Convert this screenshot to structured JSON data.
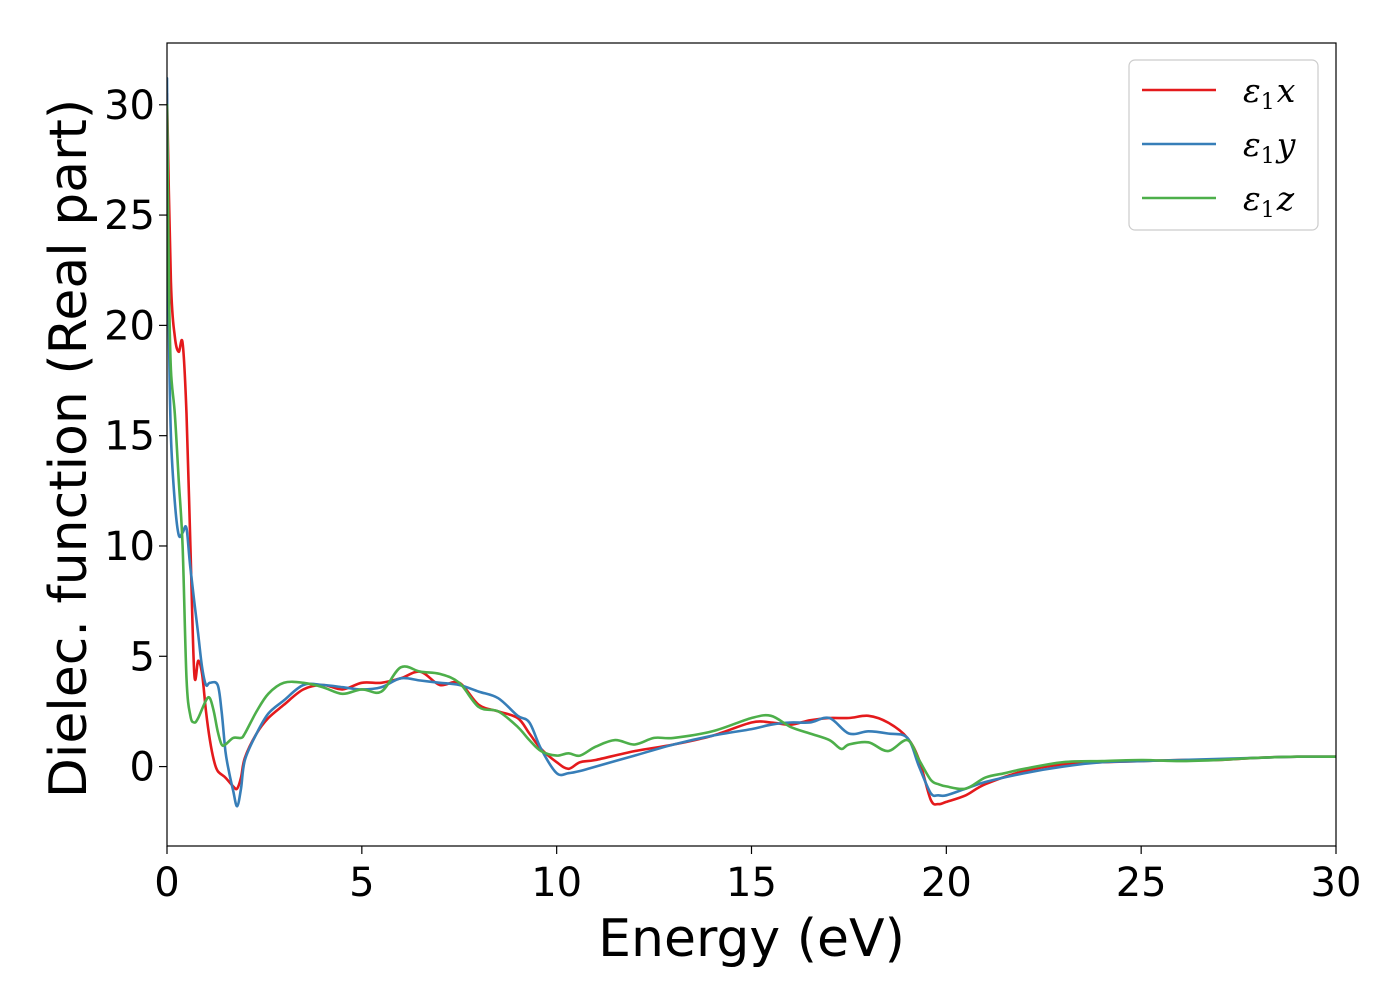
{
  "chart_data": {
    "type": "line",
    "title": "",
    "xlabel": "Energy (eV)",
    "ylabel": "Dielec. function (Real part)",
    "xlim": [
      0,
      30
    ],
    "ylim": [
      -3.6,
      32.8
    ],
    "xticks": [
      0,
      5,
      10,
      15,
      20,
      25,
      30
    ],
    "yticks": [
      0,
      5,
      10,
      15,
      20,
      25,
      30
    ],
    "grid": false,
    "legend_position": "top-right",
    "series": [
      {
        "name": "ε1x",
        "label_base": "ε",
        "label_sub": "1",
        "label_var": "x",
        "color": "#e41a1c",
        "points": [
          [
            0.0,
            30.5
          ],
          [
            0.1,
            22
          ],
          [
            0.2,
            19.5
          ],
          [
            0.3,
            18.8
          ],
          [
            0.4,
            19.2
          ],
          [
            0.5,
            16
          ],
          [
            0.6,
            10
          ],
          [
            0.7,
            4.2
          ],
          [
            0.8,
            4.8
          ],
          [
            0.9,
            4.2
          ],
          [
            1.0,
            2.5
          ],
          [
            1.1,
            1.2
          ],
          [
            1.2,
            0.3
          ],
          [
            1.3,
            -0.2
          ],
          [
            1.5,
            -0.5
          ],
          [
            1.7,
            -0.9
          ],
          [
            1.8,
            -1.0
          ],
          [
            1.9,
            -0.5
          ],
          [
            2.0,
            0.4
          ],
          [
            2.3,
            1.5
          ],
          [
            2.6,
            2.2
          ],
          [
            3.0,
            2.8
          ],
          [
            3.5,
            3.5
          ],
          [
            4.0,
            3.7
          ],
          [
            4.5,
            3.5
          ],
          [
            5.0,
            3.8
          ],
          [
            5.5,
            3.8
          ],
          [
            6.0,
            4.0
          ],
          [
            6.5,
            4.3
          ],
          [
            7.0,
            3.7
          ],
          [
            7.5,
            3.8
          ],
          [
            8.0,
            2.8
          ],
          [
            8.5,
            2.5
          ],
          [
            9.0,
            2.2
          ],
          [
            9.3,
            1.5
          ],
          [
            9.6,
            0.8
          ],
          [
            10.0,
            0.2
          ],
          [
            10.3,
            -0.1
          ],
          [
            10.6,
            0.2
          ],
          [
            11.0,
            0.3
          ],
          [
            12.0,
            0.7
          ],
          [
            13.0,
            1.0
          ],
          [
            14.0,
            1.4
          ],
          [
            15.0,
            2.0
          ],
          [
            15.5,
            2.0
          ],
          [
            16.0,
            1.9
          ],
          [
            16.5,
            2.1
          ],
          [
            17.0,
            2.2
          ],
          [
            17.5,
            2.2
          ],
          [
            18.0,
            2.3
          ],
          [
            18.5,
            2.0
          ],
          [
            19.0,
            1.3
          ],
          [
            19.3,
            0.3
          ],
          [
            19.6,
            -1.5
          ],
          [
            19.8,
            -1.7
          ],
          [
            20.0,
            -1.6
          ],
          [
            20.5,
            -1.3
          ],
          [
            21.0,
            -0.8
          ],
          [
            22.0,
            -0.2
          ],
          [
            23.0,
            0.1
          ],
          [
            24.0,
            0.2
          ],
          [
            25.0,
            0.25
          ],
          [
            26.0,
            0.3
          ],
          [
            27.0,
            0.3
          ],
          [
            28.0,
            0.4
          ],
          [
            29.0,
            0.45
          ],
          [
            30.0,
            0.45
          ]
        ]
      },
      {
        "name": "ε1y",
        "label_base": "ε",
        "label_sub": "1",
        "label_var": "y",
        "color": "#377eb8",
        "points": [
          [
            0.0,
            31.2
          ],
          [
            0.05,
            20
          ],
          [
            0.1,
            15
          ],
          [
            0.2,
            12
          ],
          [
            0.3,
            10.5
          ],
          [
            0.4,
            10.6
          ],
          [
            0.5,
            10.8
          ],
          [
            0.6,
            9
          ],
          [
            0.8,
            6
          ],
          [
            0.9,
            4.5
          ],
          [
            1.0,
            3.7
          ],
          [
            1.1,
            3.8
          ],
          [
            1.3,
            3.7
          ],
          [
            1.4,
            2.5
          ],
          [
            1.5,
            0.7
          ],
          [
            1.6,
            -0.3
          ],
          [
            1.7,
            -1.1
          ],
          [
            1.8,
            -1.8
          ],
          [
            1.9,
            -1.0
          ],
          [
            2.0,
            0.3
          ],
          [
            2.3,
            1.5
          ],
          [
            2.6,
            2.4
          ],
          [
            3.0,
            3.0
          ],
          [
            3.5,
            3.7
          ],
          [
            4.0,
            3.7
          ],
          [
            4.5,
            3.6
          ],
          [
            5.0,
            3.5
          ],
          [
            5.5,
            3.6
          ],
          [
            6.0,
            4.0
          ],
          [
            6.5,
            3.9
          ],
          [
            7.0,
            3.8
          ],
          [
            7.5,
            3.7
          ],
          [
            8.0,
            3.4
          ],
          [
            8.5,
            3.1
          ],
          [
            9.0,
            2.3
          ],
          [
            9.3,
            2.0
          ],
          [
            9.6,
            0.8
          ],
          [
            10.0,
            -0.3
          ],
          [
            10.3,
            -0.3
          ],
          [
            10.6,
            -0.2
          ],
          [
            11.0,
            0.0
          ],
          [
            12.0,
            0.5
          ],
          [
            13.0,
            1.0
          ],
          [
            14.0,
            1.4
          ],
          [
            15.0,
            1.7
          ],
          [
            15.5,
            1.9
          ],
          [
            16.0,
            2.0
          ],
          [
            16.5,
            2.0
          ],
          [
            17.0,
            2.2
          ],
          [
            17.5,
            1.5
          ],
          [
            18.0,
            1.6
          ],
          [
            18.5,
            1.5
          ],
          [
            19.0,
            1.3
          ],
          [
            19.3,
            0.0
          ],
          [
            19.6,
            -1.2
          ],
          [
            19.8,
            -1.3
          ],
          [
            20.0,
            -1.3
          ],
          [
            20.5,
            -1.0
          ],
          [
            21.0,
            -0.7
          ],
          [
            22.0,
            -0.3
          ],
          [
            23.0,
            0.0
          ],
          [
            24.0,
            0.2
          ],
          [
            25.0,
            0.25
          ],
          [
            26.0,
            0.3
          ],
          [
            27.0,
            0.35
          ],
          [
            28.0,
            0.4
          ],
          [
            29.0,
            0.45
          ],
          [
            30.0,
            0.45
          ]
        ]
      },
      {
        "name": "ε1z",
        "label_base": "ε",
        "label_sub": "1",
        "label_var": "z",
        "color": "#4daf4a",
        "points": [
          [
            0.0,
            30
          ],
          [
            0.05,
            22
          ],
          [
            0.1,
            18
          ],
          [
            0.2,
            16
          ],
          [
            0.3,
            13
          ],
          [
            0.4,
            10
          ],
          [
            0.5,
            4
          ],
          [
            0.6,
            2.3
          ],
          [
            0.7,
            2.0
          ],
          [
            0.8,
            2.2
          ],
          [
            1.0,
            3.0
          ],
          [
            1.1,
            3.1
          ],
          [
            1.2,
            2.5
          ],
          [
            1.3,
            1.6
          ],
          [
            1.4,
            1.0
          ],
          [
            1.5,
            1.0
          ],
          [
            1.7,
            1.3
          ],
          [
            1.9,
            1.3
          ],
          [
            2.0,
            1.5
          ],
          [
            2.3,
            2.5
          ],
          [
            2.6,
            3.3
          ],
          [
            3.0,
            3.8
          ],
          [
            3.5,
            3.8
          ],
          [
            4.0,
            3.6
          ],
          [
            4.5,
            3.3
          ],
          [
            5.0,
            3.5
          ],
          [
            5.5,
            3.4
          ],
          [
            6.0,
            4.5
          ],
          [
            6.5,
            4.3
          ],
          [
            7.0,
            4.2
          ],
          [
            7.5,
            3.8
          ],
          [
            8.0,
            2.7
          ],
          [
            8.5,
            2.5
          ],
          [
            9.0,
            1.8
          ],
          [
            9.3,
            1.2
          ],
          [
            9.6,
            0.7
          ],
          [
            10.0,
            0.5
          ],
          [
            10.3,
            0.6
          ],
          [
            10.6,
            0.5
          ],
          [
            11.0,
            0.9
          ],
          [
            11.5,
            1.2
          ],
          [
            12.0,
            1.0
          ],
          [
            12.5,
            1.3
          ],
          [
            13.0,
            1.3
          ],
          [
            14.0,
            1.6
          ],
          [
            15.0,
            2.2
          ],
          [
            15.5,
            2.3
          ],
          [
            16.0,
            1.8
          ],
          [
            16.5,
            1.5
          ],
          [
            17.0,
            1.2
          ],
          [
            17.3,
            0.8
          ],
          [
            17.5,
            1.0
          ],
          [
            18.0,
            1.1
          ],
          [
            18.5,
            0.7
          ],
          [
            19.0,
            1.2
          ],
          [
            19.3,
            0.3
          ],
          [
            19.6,
            -0.6
          ],
          [
            19.8,
            -0.8
          ],
          [
            20.0,
            -0.9
          ],
          [
            20.5,
            -1.0
          ],
          [
            21.0,
            -0.5
          ],
          [
            21.5,
            -0.3
          ],
          [
            22.0,
            -0.1
          ],
          [
            23.0,
            0.2
          ],
          [
            24.0,
            0.25
          ],
          [
            25.0,
            0.3
          ],
          [
            26.0,
            0.25
          ],
          [
            27.0,
            0.3
          ],
          [
            28.0,
            0.4
          ],
          [
            29.0,
            0.45
          ],
          [
            30.0,
            0.45
          ]
        ]
      }
    ]
  }
}
